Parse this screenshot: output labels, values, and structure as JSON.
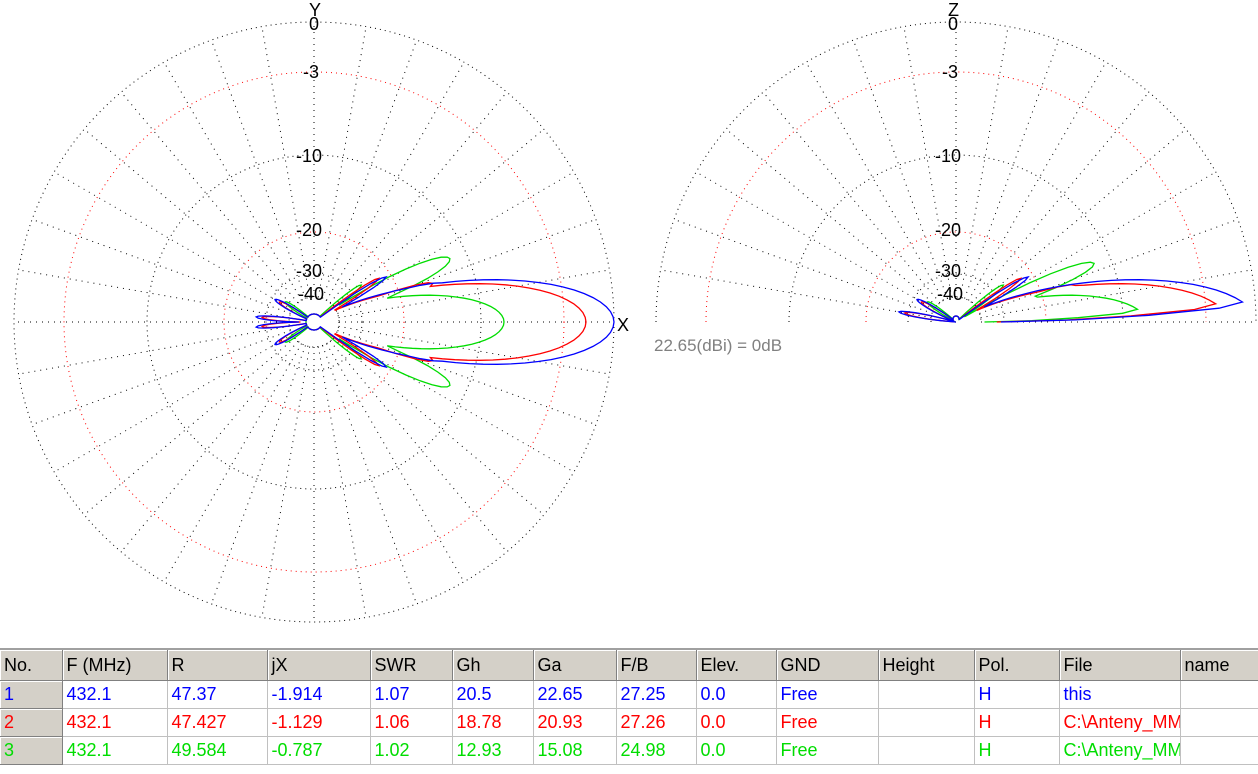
{
  "colors": {
    "series1": "#0000ff",
    "series2": "#ff0000",
    "series3": "#00dd00",
    "grid": "#000000",
    "grid_red": "#ff0000"
  },
  "azimuth_plot": {
    "top_axis_label": "Y",
    "right_axis_label": "X",
    "ring_labels": [
      "0",
      "-3",
      "-10",
      "-20",
      "-30",
      "-40"
    ]
  },
  "elevation_plot": {
    "top_axis_label": "Z",
    "ring_labels": [
      "0",
      "-3",
      "-10",
      "-20",
      "-30",
      "-40"
    ]
  },
  "reference_text": "22.65(dBi) = 0dB",
  "table": {
    "headers": [
      "No.",
      "F (MHz)",
      "R",
      "jX",
      "SWR",
      "Gh",
      "Ga",
      "F/B",
      "Elev.",
      "GND",
      "Height",
      "Pol.",
      "File",
      "name"
    ],
    "rows": [
      {
        "no": "1",
        "f": "432.1",
        "r": "47.37",
        "jx": "-1.914",
        "swr": "1.07",
        "gh": "20.5",
        "ga": "22.65",
        "fb": "27.25",
        "elev": "0.0",
        "gnd": "Free",
        "height": "",
        "pol": "H",
        "file": "this",
        "name": ""
      },
      {
        "no": "2",
        "f": "432.1",
        "r": "47.427",
        "jx": "-1.129",
        "swr": "1.06",
        "gh": "18.78",
        "ga": "20.93",
        "fb": "27.26",
        "elev": "0.0",
        "gnd": "Free",
        "height": "",
        "pol": "H",
        "file": "C:\\Anteny_MMANA\\",
        "name": ""
      },
      {
        "no": "3",
        "f": "432.1",
        "r": "49.584",
        "jx": "-0.787",
        "swr": "1.02",
        "gh": "12.93",
        "ga": "15.08",
        "fb": "24.98",
        "elev": "0.0",
        "gnd": "Free",
        "height": "",
        "pol": "H",
        "file": "C:\\Anteny_MMANA\\",
        "name": ""
      }
    ]
  }
}
